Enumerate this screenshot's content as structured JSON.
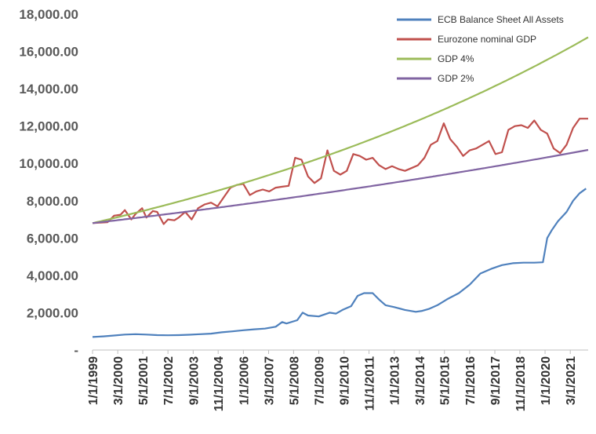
{
  "chart_data": {
    "type": "line",
    "title": "",
    "xlabel": "",
    "ylabel": "",
    "ylim": [
      0,
      18000
    ],
    "grid": false,
    "legend_position": "top-right",
    "yticks": [
      0,
      2000,
      4000,
      6000,
      8000,
      10000,
      12000,
      14000,
      16000,
      18000
    ],
    "ytick_labels": [
      "-",
      "2,000.00",
      "4,000.00",
      "6,000.00",
      "8,000.00",
      "10,000.00",
      "12,000.00",
      "14,000.00",
      "16,000.00",
      "18,000.00"
    ],
    "xrange": [
      1999.0,
      2022.0
    ],
    "xticks": [
      1999.0,
      2000.17,
      2001.33,
      2002.5,
      2003.67,
      2004.83,
      2006.0,
      2007.17,
      2008.33,
      2009.5,
      2010.67,
      2011.83,
      2013.0,
      2014.17,
      2015.33,
      2016.5,
      2017.67,
      2018.83,
      2020.0,
      2021.17
    ],
    "xtick_labels": [
      "1/1/1999",
      "3/1/2000",
      "5/1/2001",
      "7/1/2002",
      "9/1/2003",
      "11/1/2004",
      "1/1/2006",
      "3/1/2007",
      "5/1/2008",
      "7/1/2009",
      "9/1/2010",
      "11/1/2011",
      "1/1/2013",
      "3/1/2014",
      "5/1/2015",
      "7/1/2016",
      "9/1/2017",
      "11/1/2018",
      "1/1/2020",
      "3/1/2021"
    ],
    "series": [
      {
        "name": "ECB Balance Sheet All Assets",
        "color": "#4f81bd",
        "x": [
          1999.0,
          1999.5,
          2000.0,
          2000.5,
          2001.0,
          2001.5,
          2002.0,
          2002.5,
          2003.0,
          2003.5,
          2004.0,
          2004.5,
          2005.0,
          2005.5,
          2006.0,
          2006.5,
          2007.0,
          2007.5,
          2007.8,
          2008.0,
          2008.5,
          2008.75,
          2009.0,
          2009.5,
          2010.0,
          2010.3,
          2010.6,
          2011.0,
          2011.3,
          2011.6,
          2012.0,
          2012.3,
          2012.6,
          2013.0,
          2013.5,
          2014.0,
          2014.3,
          2014.6,
          2015.0,
          2015.5,
          2016.0,
          2016.5,
          2017.0,
          2017.5,
          2018.0,
          2018.5,
          2019.0,
          2019.5,
          2019.9,
          2020.1,
          2020.3,
          2020.6,
          2021.0,
          2021.3,
          2021.6,
          2021.9
        ],
        "values": [
          700,
          730,
          780,
          830,
          850,
          830,
          800,
          790,
          800,
          820,
          850,
          880,
          950,
          1000,
          1060,
          1110,
          1150,
          1250,
          1500,
          1420,
          1600,
          2000,
          1850,
          1800,
          2000,
          1950,
          2150,
          2350,
          2900,
          3050,
          3050,
          2700,
          2400,
          2300,
          2150,
          2050,
          2100,
          2200,
          2400,
          2750,
          3050,
          3500,
          4100,
          4350,
          4550,
          4650,
          4680,
          4680,
          4700,
          6000,
          6400,
          6900,
          7400,
          8000,
          8400,
          8650
        ]
      },
      {
        "name": "Eurozone nominal GDP",
        "color": "#c0504d",
        "x": [
          1999.0,
          1999.7,
          2000.0,
          2000.3,
          2000.5,
          2000.8,
          2001.0,
          2001.3,
          2001.5,
          2001.8,
          2002.0,
          2002.3,
          2002.5,
          2002.8,
          2003.0,
          2003.3,
          2003.6,
          2003.9,
          2004.2,
          2004.5,
          2004.8,
          2005.1,
          2005.4,
          2005.7,
          2006.0,
          2006.3,
          2006.6,
          2006.9,
          2007.2,
          2007.5,
          2007.8,
          2008.1,
          2008.4,
          2008.7,
          2009.0,
          2009.3,
          2009.6,
          2009.9,
          2010.2,
          2010.5,
          2010.8,
          2011.1,
          2011.4,
          2011.7,
          2012.0,
          2012.3,
          2012.6,
          2012.9,
          2013.2,
          2013.5,
          2013.8,
          2014.1,
          2014.4,
          2014.7,
          2015.0,
          2015.3,
          2015.6,
          2015.9,
          2016.2,
          2016.5,
          2016.8,
          2017.1,
          2017.4,
          2017.7,
          2018.0,
          2018.3,
          2018.6,
          2018.9,
          2019.2,
          2019.5,
          2019.8,
          2020.1,
          2020.4,
          2020.7,
          2021.0,
          2021.3,
          2021.6,
          2022.0
        ],
        "values": [
          6800,
          6850,
          7200,
          7250,
          7500,
          7000,
          7300,
          7600,
          7100,
          7450,
          7400,
          6750,
          7000,
          6950,
          7100,
          7400,
          7000,
          7600,
          7800,
          7900,
          7700,
          8200,
          8700,
          8850,
          8900,
          8300,
          8500,
          8600,
          8500,
          8700,
          8750,
          8800,
          10300,
          10200,
          9300,
          8950,
          9200,
          10700,
          9600,
          9400,
          9600,
          10500,
          10400,
          10200,
          10300,
          9900,
          9700,
          9850,
          9700,
          9600,
          9750,
          9900,
          10300,
          11000,
          11200,
          12150,
          11300,
          10900,
          10400,
          10700,
          10800,
          11000,
          11200,
          10500,
          10600,
          11800,
          12000,
          12050,
          11900,
          12300,
          11800,
          11600,
          10800,
          10550,
          11000,
          11900,
          12400,
          12400
        ]
      },
      {
        "name": "GDP 4%",
        "color": "#9bbb59",
        "growth": 0.04,
        "start_value": 6800,
        "x_start": 1999.0,
        "x_end": 2022.0
      },
      {
        "name": "GDP 2%",
        "color": "#8064a2",
        "growth": 0.02,
        "start_value": 6800,
        "x_start": 1999.0,
        "x_end": 2022.0
      }
    ]
  }
}
